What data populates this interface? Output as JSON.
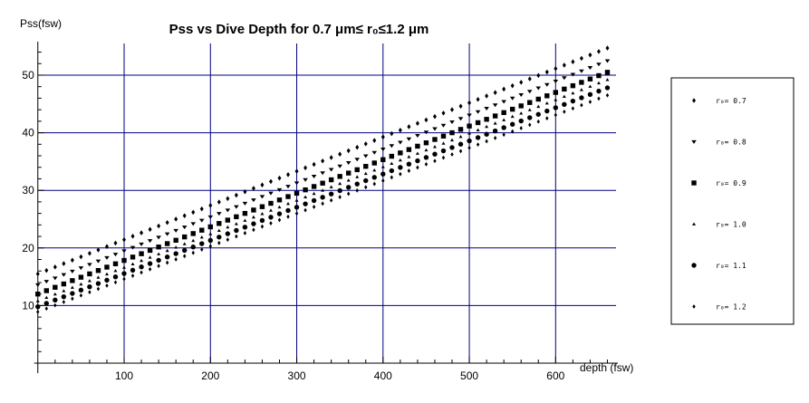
{
  "chart_data": {
    "type": "scatter",
    "title": "Pss vs Dive Depth for 0.7 μm≤ r₀≤1.2 μm",
    "xlabel": "depth (fsw)",
    "ylabel": "Pss(fsw)",
    "xlim": [
      -5,
      670
    ],
    "ylim": [
      0,
      55.5
    ],
    "x_ticks": [
      100,
      200,
      300,
      400,
      500,
      600
    ],
    "y_ticks": [
      10,
      20,
      30,
      40,
      50
    ],
    "grid": true,
    "grid_color": "#000080",
    "legend_position": "right",
    "x_start": 0,
    "x_end": 660,
    "x_step": 10,
    "series": [
      {
        "name": "r₀= 0.7",
        "marker": "diamond",
        "y_at_0": 15.5,
        "y_at_660": 54.7
      },
      {
        "name": "r₀= 0.8",
        "marker": "triangle-down",
        "y_at_0": 13.6,
        "y_at_660": 52.5
      },
      {
        "name": "r₀= 0.9",
        "marker": "square",
        "y_at_0": 12.0,
        "y_at_660": 50.5
      },
      {
        "name": "r₀= 1.0",
        "marker": "triangle-up",
        "y_at_0": 10.8,
        "y_at_660": 49.2
      },
      {
        "name": "r₀= 1.1",
        "marker": "circle",
        "y_at_0": 9.8,
        "y_at_660": 47.8
      },
      {
        "name": "r₀= 1.2",
        "marker": "diamond-small",
        "y_at_0": 8.9,
        "y_at_660": 46.5
      }
    ]
  }
}
